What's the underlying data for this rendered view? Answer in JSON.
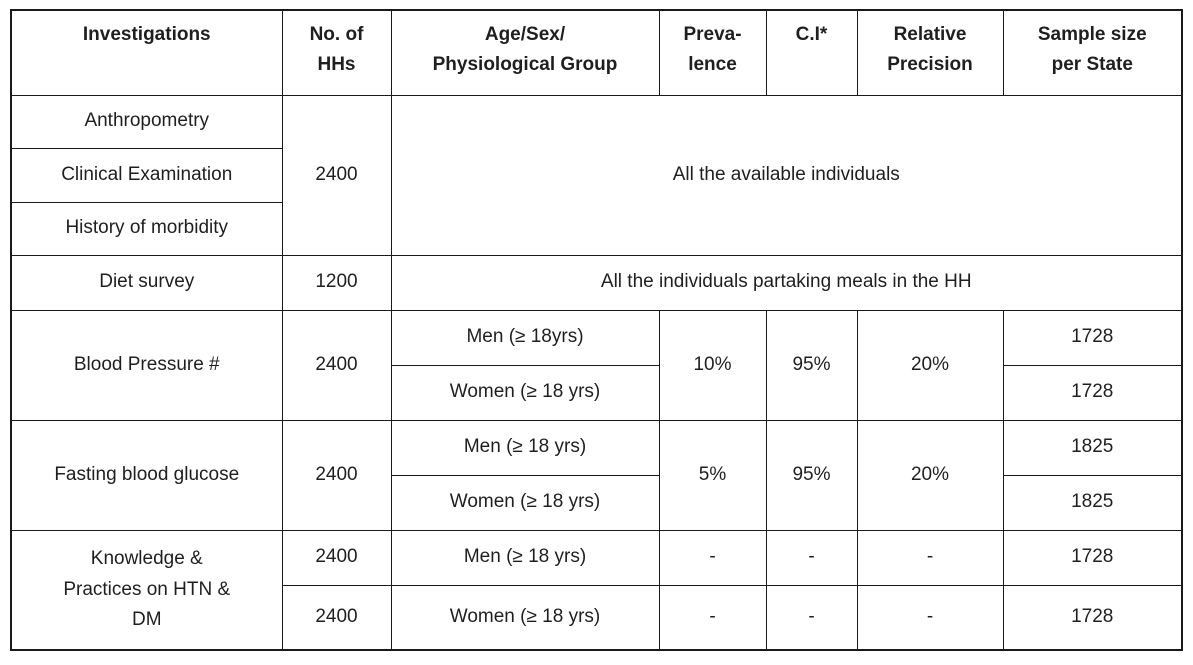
{
  "table": {
    "headers": [
      "Investigations",
      "No. of\nHHs",
      "Age/Sex/\nPhysiological Group",
      "Preva-\nlence",
      "C.I*",
      "Relative\nPrecision",
      "Sample size\nper State"
    ],
    "sections": {
      "anthropometry_group": {
        "investigations": [
          "Anthropometry",
          "Clinical Examination",
          "History of morbidity"
        ],
        "no_of_hhs": "2400",
        "group_note": "All the available individuals"
      },
      "diet_survey": {
        "investigation": "Diet survey",
        "no_of_hhs": "1200",
        "group_note": "All the individuals partaking meals in the HH"
      },
      "blood_pressure": {
        "investigation": "Blood Pressure #",
        "no_of_hhs": "2400",
        "groups": [
          "Men (≥ 18yrs)",
          "Women (≥ 18 yrs)"
        ],
        "prevalence": "10%",
        "ci": "95%",
        "relative_precision": "20%",
        "sample_sizes": [
          "1728",
          "1728"
        ]
      },
      "fasting_blood_glucose": {
        "investigation": "Fasting blood glucose",
        "no_of_hhs": "2400",
        "groups": [
          "Men (≥ 18 yrs)",
          "Women (≥ 18 yrs)"
        ],
        "prevalence": "5%",
        "ci": "95%",
        "relative_precision": "20%",
        "sample_sizes": [
          "1825",
          "1825"
        ]
      },
      "knowledge_practices": {
        "investigation": "Knowledge &\nPractices on HTN &\nDM",
        "no_of_hhs": [
          "2400",
          "2400"
        ],
        "groups": [
          "Men (≥ 18 yrs)",
          "Women (≥ 18 yrs)"
        ],
        "prevalence": [
          "-",
          "-"
        ],
        "ci": [
          "-",
          "-"
        ],
        "relative_precision": [
          "-",
          "-"
        ],
        "sample_sizes": [
          "1728",
          "1728"
        ]
      }
    }
  }
}
